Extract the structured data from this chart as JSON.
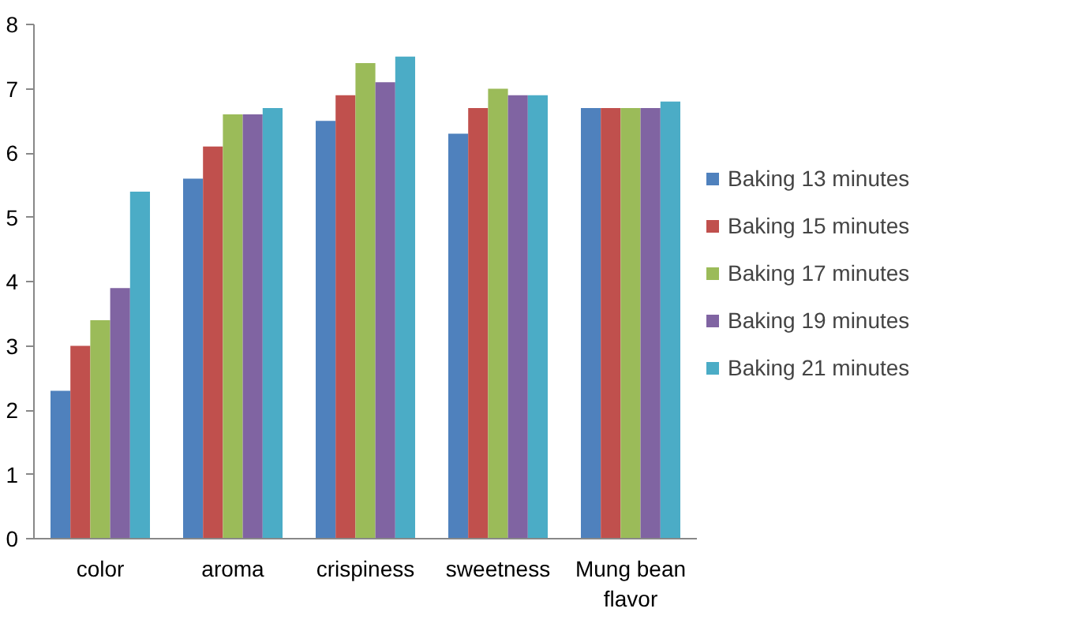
{
  "chart_data": {
    "type": "bar",
    "categories": [
      "color",
      "aroma",
      "crispiness",
      "sweetness",
      "Mung bean flavor"
    ],
    "series": [
      {
        "name": "Baking 13 minutes",
        "color": "#4f81bd",
        "values": [
          2.3,
          5.6,
          6.5,
          6.3,
          6.7
        ]
      },
      {
        "name": "Baking 15 minutes",
        "color": "#c0504d",
        "values": [
          3.0,
          6.1,
          6.9,
          6.7,
          6.7
        ]
      },
      {
        "name": "Baking 17 minutes",
        "color": "#9bbb59",
        "values": [
          3.4,
          6.6,
          7.4,
          7.0,
          6.7
        ]
      },
      {
        "name": "Baking 19 minutes",
        "color": "#8064a2",
        "values": [
          3.9,
          6.6,
          7.1,
          6.9,
          6.7
        ]
      },
      {
        "name": "Baking 21 minutes",
        "color": "#4bacc6",
        "values": [
          5.4,
          6.7,
          7.5,
          6.9,
          6.8
        ]
      }
    ],
    "ylim": [
      0,
      8
    ],
    "yticks": [
      0,
      1,
      2,
      3,
      4,
      5,
      6,
      7,
      8
    ],
    "grid": false,
    "legend": "right"
  }
}
